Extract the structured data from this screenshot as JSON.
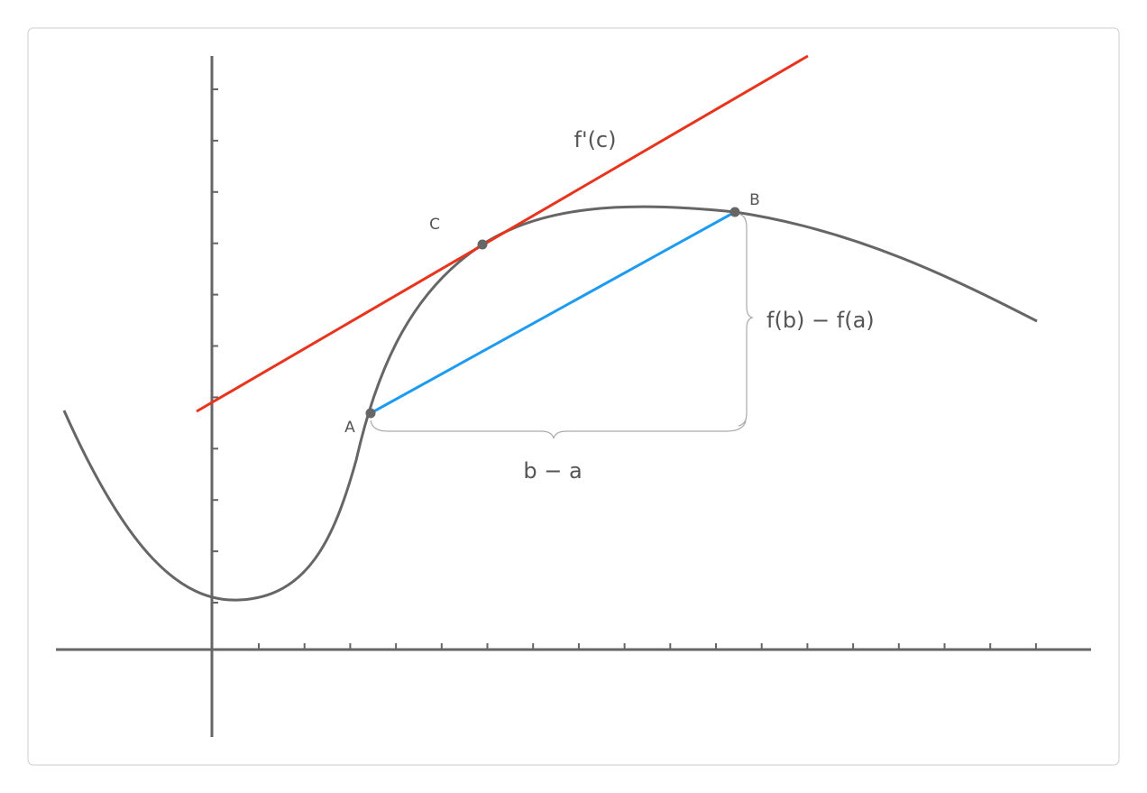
{
  "labels": {
    "tangent": "f'(c)",
    "point_c": "C",
    "point_b": "B",
    "point_a": "A",
    "run": "b − a",
    "rise": "f(b) − f(a)"
  }
}
